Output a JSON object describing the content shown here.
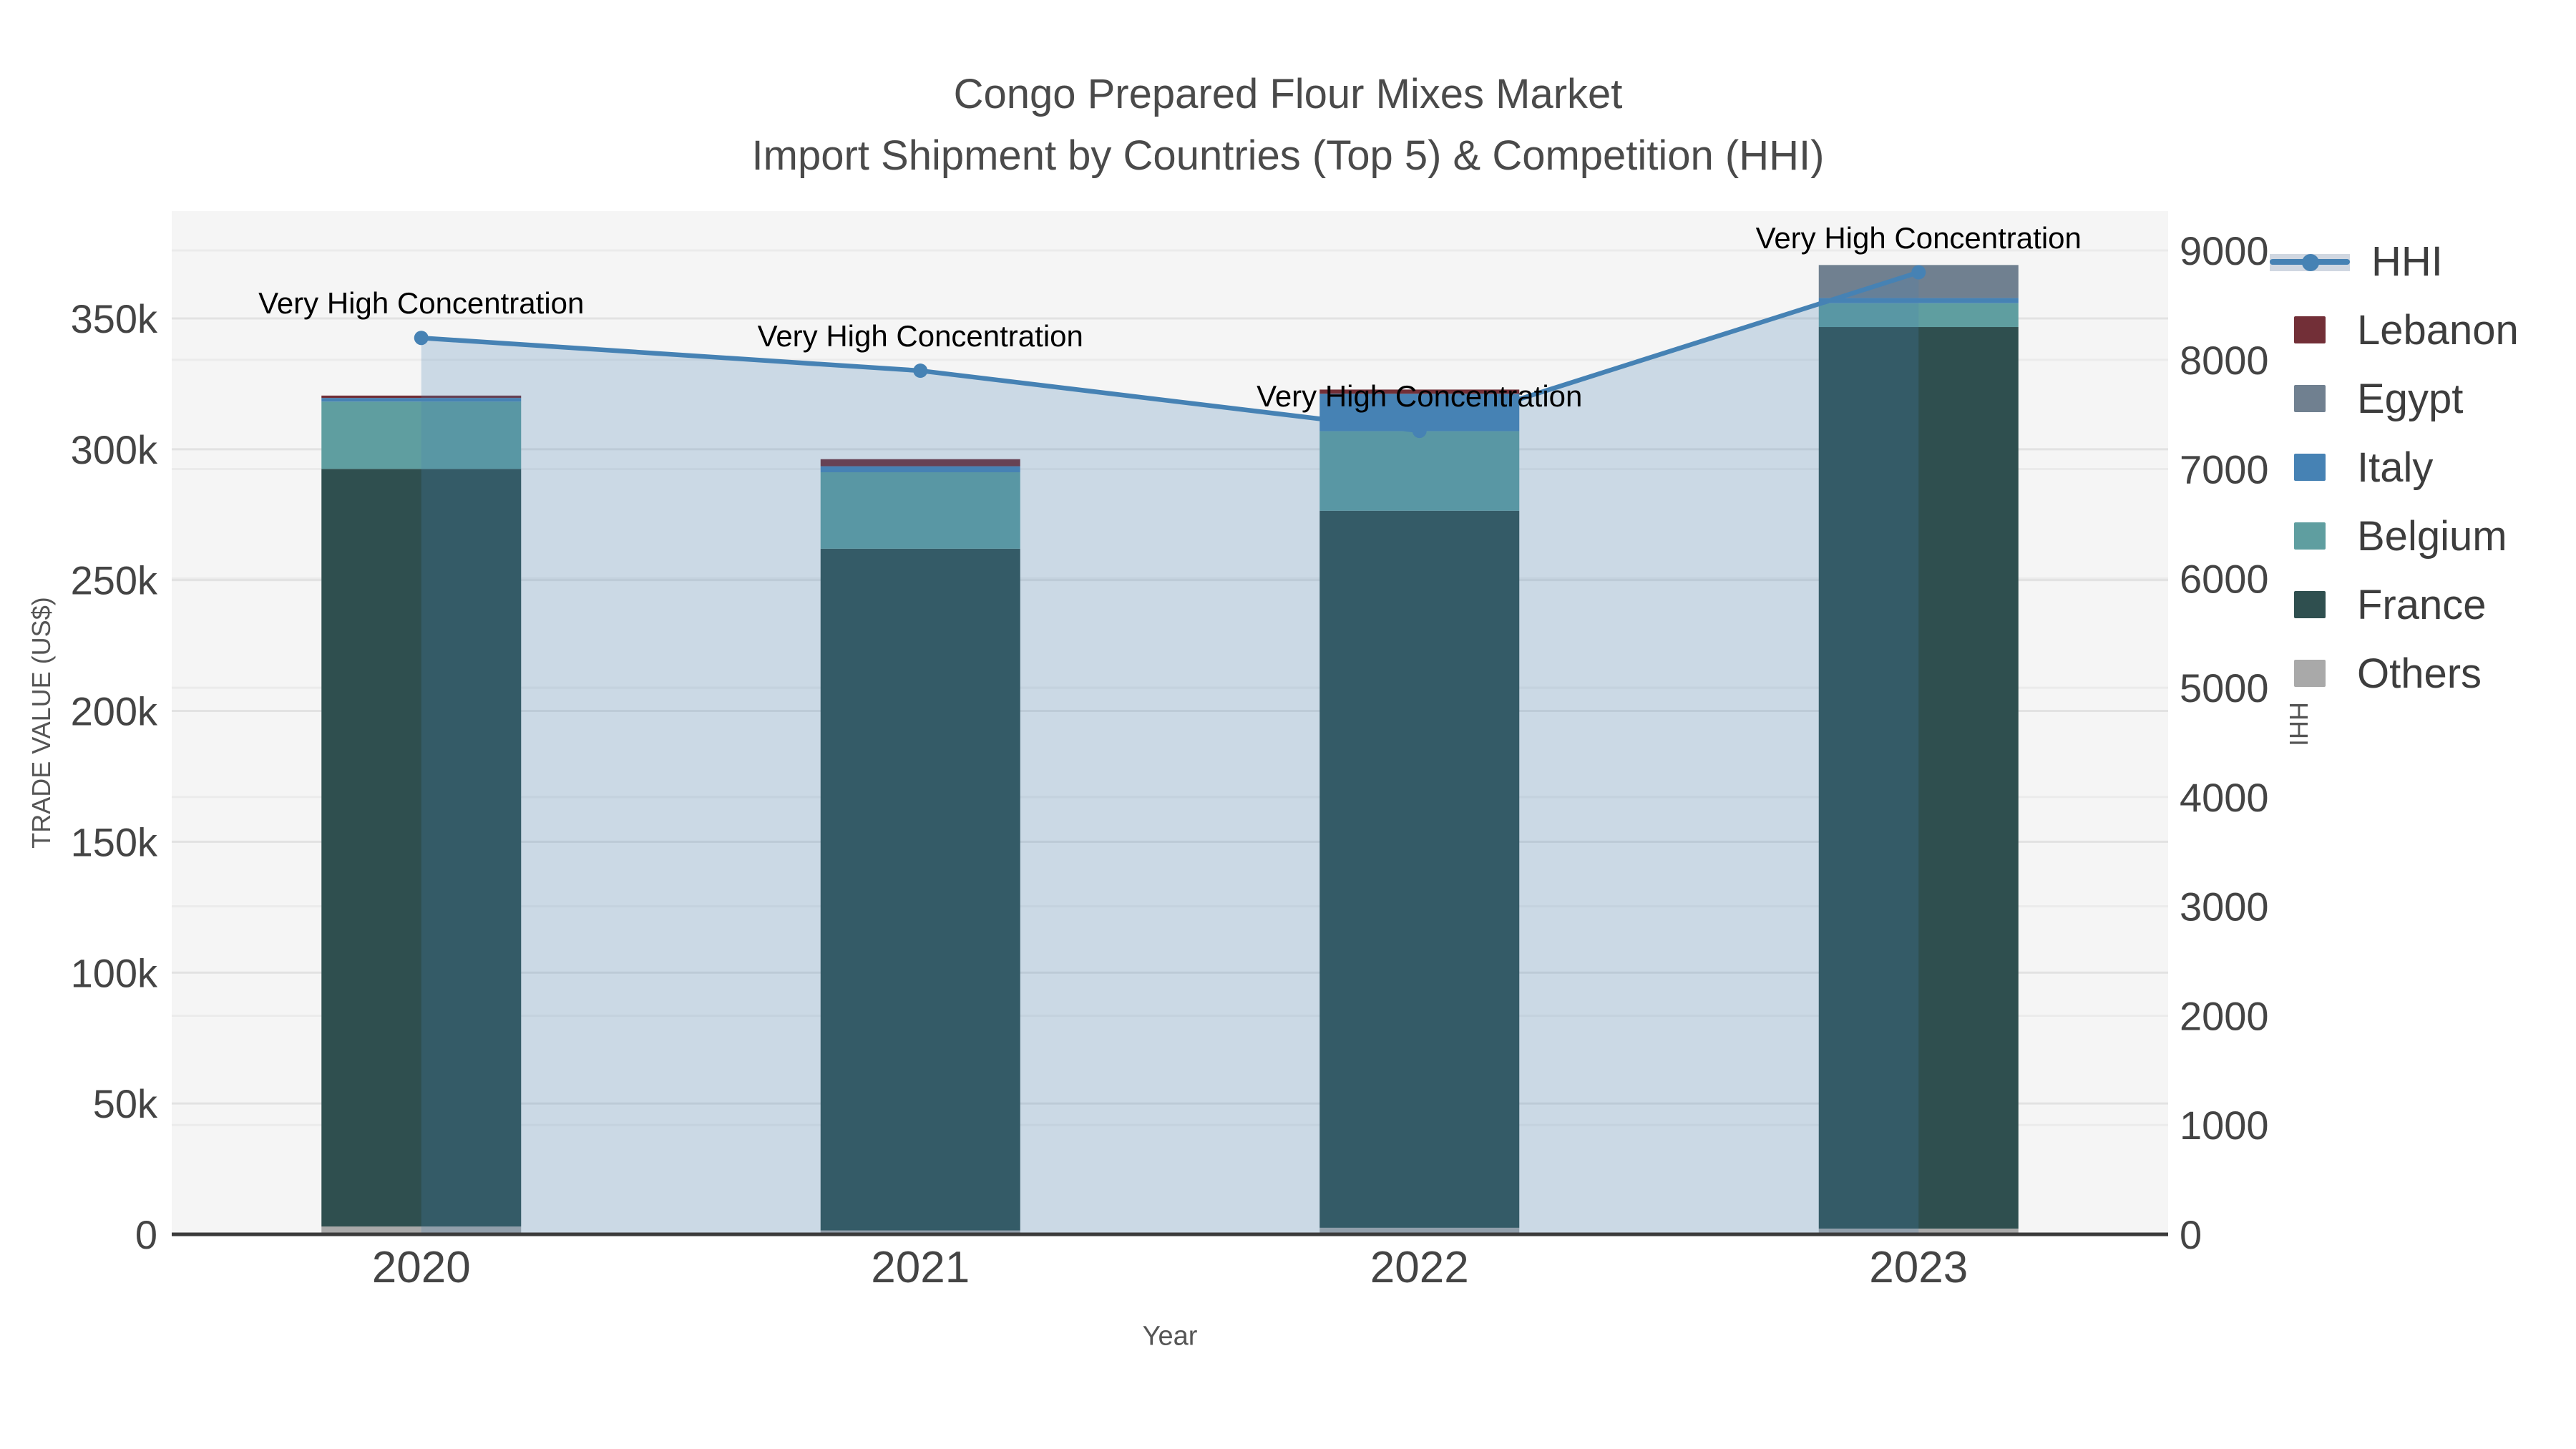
{
  "title": {
    "line1": "Congo Prepared Flour Mixes Market",
    "line2": "Import Shipment by Countries (Top 5) & Competition (HHI)"
  },
  "axes": {
    "x": {
      "title": "Year"
    },
    "y": {
      "title": "TRADE VALUE (US$)"
    },
    "y2": {
      "title": "HHI"
    }
  },
  "chart_data": {
    "type": "bar",
    "subtype": "stacked-bars-with-line-overlay",
    "title": "Congo Prepared Flour Mixes Market — Import Shipment by Countries (Top 5) & Competition (HHI)",
    "categories": [
      "2020",
      "2021",
      "2022",
      "2023"
    ],
    "series": [
      {
        "name": "Others",
        "color": "#A9A9A9",
        "values": [
          3000,
          1500,
          2500,
          2200
        ]
      },
      {
        "name": "France",
        "color": "#2F4F4F",
        "values": [
          289500,
          260500,
          274000,
          344500
        ]
      },
      {
        "name": "Belgium",
        "color": "#5F9EA0",
        "values": [
          25700,
          29200,
          30400,
          9100
        ]
      },
      {
        "name": "Italy",
        "color": "#4682B4",
        "values": [
          1400,
          2300,
          14300,
          2000
        ]
      },
      {
        "name": "Egypt",
        "color": "#708090",
        "values": [
          0,
          0,
          0,
          12600
        ]
      },
      {
        "name": "Lebanon",
        "color": "#722F37",
        "values": [
          900,
          2700,
          1600,
          0
        ]
      }
    ],
    "line": {
      "name": "HHI",
      "axis": "y2",
      "color": "#4682B4",
      "fill": "rgba(70,130,180,0.24)",
      "values": [
        8200,
        7900,
        7350,
        8800
      ]
    },
    "annotations": [
      {
        "text": "Very High Concentration",
        "category": "2020"
      },
      {
        "text": "Very High Concentration",
        "category": "2021"
      },
      {
        "text": "Very High Concentration",
        "category": "2022"
      },
      {
        "text": "Very High Concentration",
        "category": "2023"
      }
    ],
    "xlabel": "Year",
    "ylabel": "TRADE VALUE (US$)",
    "y2label": "HHI",
    "ylim": [
      0,
      391000
    ],
    "y2lim": [
      0,
      9360
    ],
    "yticks": [
      {
        "label": "0",
        "value": 0
      },
      {
        "label": "50k",
        "value": 50000
      },
      {
        "label": "100k",
        "value": 100000
      },
      {
        "label": "150k",
        "value": 150000
      },
      {
        "label": "200k",
        "value": 200000
      },
      {
        "label": "250k",
        "value": 250000
      },
      {
        "label": "300k",
        "value": 300000
      },
      {
        "label": "350k",
        "value": 350000
      }
    ],
    "y2ticks": [
      {
        "label": "0",
        "value": 0
      },
      {
        "label": "1000",
        "value": 1000
      },
      {
        "label": "2000",
        "value": 2000
      },
      {
        "label": "3000",
        "value": 3000
      },
      {
        "label": "4000",
        "value": 4000
      },
      {
        "label": "5000",
        "value": 5000
      },
      {
        "label": "6000",
        "value": 6000
      },
      {
        "label": "7000",
        "value": 7000
      },
      {
        "label": "8000",
        "value": 8000
      },
      {
        "label": "9000",
        "value": 9000
      }
    ],
    "grid": true,
    "legend_position": "right"
  },
  "legend": {
    "items": [
      {
        "name": "HHI",
        "type": "line",
        "color": "#4682B4"
      },
      {
        "name": "Lebanon",
        "type": "box",
        "color": "#722F37"
      },
      {
        "name": "Egypt",
        "type": "box",
        "color": "#708090"
      },
      {
        "name": "Italy",
        "type": "box",
        "color": "#4682B4"
      },
      {
        "name": "Belgium",
        "type": "box",
        "color": "#5F9EA0"
      },
      {
        "name": "France",
        "type": "box",
        "color": "#2F4F4F"
      },
      {
        "name": "Others",
        "type": "box",
        "color": "#A9A9A9"
      }
    ]
  },
  "theme": {
    "plot_bg": "#f5f5f5",
    "grid_major": "#e2e2e2",
    "grid_minor": "#ebebeb",
    "axis_line": "#3b3b3b",
    "tick_color": "#444444",
    "title_color": "#4a4a4a",
    "annotation_color": "#000000",
    "accent": "#4682B4"
  }
}
